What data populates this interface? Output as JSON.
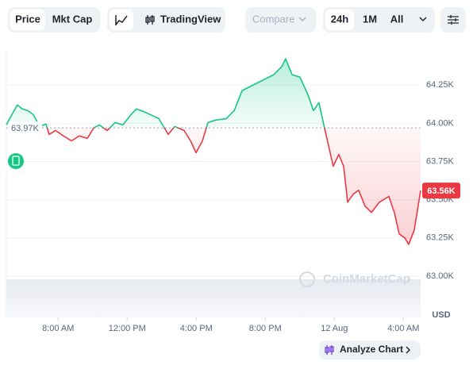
{
  "toolbar": {
    "tabs": [
      "Price",
      "Mkt Cap"
    ],
    "tradingview": "TradingView",
    "compare": "Compare",
    "ranges": [
      "24h",
      "1M",
      "All"
    ]
  },
  "chart_data": {
    "type": "line",
    "x": [
      5.0,
      5.32,
      5.64,
      5.92,
      6.24,
      6.56,
      6.93,
      7.3,
      7.48,
      7.85,
      8.31,
      8.77,
      9.23,
      9.69,
      10.06,
      10.38,
      10.84,
      11.3,
      11.76,
      12.22,
      12.54,
      13.14,
      13.83,
      14.38,
      14.75,
      15.3,
      15.67,
      15.99,
      16.36,
      16.68,
      17.14,
      17.74,
      18.2,
      18.66,
      19.11,
      19.57,
      20.03,
      20.49,
      20.95,
      21.18,
      21.55,
      22.01,
      22.47,
      22.79,
      23.11,
      23.39,
      23.57,
      23.94,
      24.26,
      24.54,
      24.77,
      25.09,
      25.41,
      25.78,
      26.15,
      26.61,
      27.16,
      27.48,
      27.76,
      28.08,
      28.31,
      28.63,
      29.0
    ],
    "values": [
      63990,
      64057,
      64120,
      64094,
      64083,
      64057,
      63979,
      63995,
      63927,
      63953,
      63917,
      63885,
      63917,
      63901,
      63969,
      63990,
      63953,
      64005,
      63990,
      64057,
      64094,
      64068,
      64031,
      63927,
      63979,
      63953,
      63885,
      63807,
      63885,
      64005,
      64021,
      64031,
      64083,
      64214,
      64240,
      64266,
      64292,
      64318,
      64370,
      64422,
      64318,
      64302,
      64187,
      64083,
      64135,
      63990,
      63901,
      63719,
      63797,
      63719,
      63484,
      63536,
      63562,
      63458,
      63417,
      63484,
      63521,
      63417,
      63276,
      63250,
      63208,
      63302,
      63560
    ],
    "xlim": [
      5,
      29
    ],
    "xticks": [
      {
        "value": 8,
        "label": "8:00 AM"
      },
      {
        "value": 12,
        "label": "12:00 PM"
      },
      {
        "value": 16,
        "label": "4:00 PM"
      },
      {
        "value": 20,
        "label": "8:00 PM"
      },
      {
        "value": 24,
        "label": "12 Aug"
      },
      {
        "value": 28,
        "label": "4:00 AM"
      }
    ],
    "ylim": [
      62730,
      64495
    ],
    "yticks": [
      {
        "value": 63000,
        "label": "63.00K"
      },
      {
        "value": 63250,
        "label": "63.25K"
      },
      {
        "value": 63500,
        "label": "63.50K"
      },
      {
        "value": 63750,
        "label": "63.75K"
      },
      {
        "value": 64000,
        "label": "64.00K"
      },
      {
        "value": 64250,
        "label": "64.25K"
      }
    ],
    "baseline": {
      "value": 63970,
      "label": "63.97K"
    },
    "current": {
      "value": 63560,
      "label": "63.56K"
    },
    "currency": "USD",
    "watermark": "CoinMarketCap",
    "button": "Analyze Chart",
    "up_color": "#16c784",
    "down_color": "#ea3943",
    "grid": true
  }
}
